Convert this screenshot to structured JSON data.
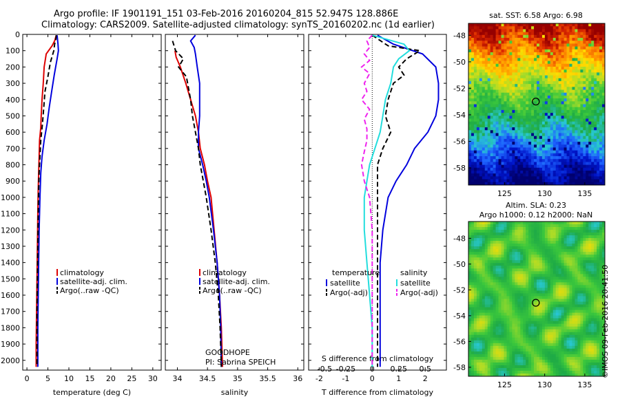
{
  "header": {
    "title_line1": "Argo profile: IF 1901191_151 03-Feb-2016 20160204_815 52.947S 128.886E",
    "title_line2": "Climatology: CARS2009. Satellite-adjusted climatology: synTS_20160202.nc (1d earlier)"
  },
  "colors": {
    "climatology": "#dd0000",
    "satellite": "#0000dd",
    "argo": "#000000",
    "sat_salinity": "#22dddd",
    "argo_salinity_diff": "#ee22ee"
  },
  "depth_axis": {
    "ticks": [
      0,
      100,
      200,
      300,
      400,
      500,
      600,
      700,
      800,
      900,
      1000,
      1100,
      1200,
      1300,
      1400,
      1500,
      1600,
      1700,
      1800,
      1900,
      2000
    ],
    "ylim": [
      0,
      2060
    ]
  },
  "chart_data": [
    {
      "type": "line",
      "name": "temperature",
      "xlabel": "temperature (deg C)",
      "xlim": [
        -1,
        32
      ],
      "xticks": [
        0,
        5,
        10,
        15,
        20,
        25,
        30
      ],
      "legend": [
        "climatology",
        "satellite-adj. clim.",
        "Argo(..raw -QC)"
      ],
      "series": [
        {
          "name": "climatology",
          "style": "solid",
          "color": "#dd0000",
          "points": [
            [
              7.0,
              5
            ],
            [
              6.6,
              40
            ],
            [
              6.0,
              70
            ],
            [
              4.6,
              120
            ],
            [
              4.1,
              200
            ],
            [
              3.9,
              300
            ],
            [
              3.6,
              400
            ],
            [
              3.4,
              500
            ],
            [
              3.3,
              570
            ],
            [
              3.0,
              650
            ],
            [
              2.9,
              750
            ],
            [
              2.8,
              850
            ],
            [
              2.7,
              950
            ],
            [
              2.6,
              1100
            ],
            [
              2.5,
              1300
            ],
            [
              2.4,
              1500
            ],
            [
              2.3,
              1700
            ],
            [
              2.2,
              1900
            ],
            [
              2.2,
              2040
            ]
          ]
        },
        {
          "name": "satellite-adj. clim.",
          "style": "solid",
          "color": "#0000dd",
          "points": [
            [
              7.2,
              5
            ],
            [
              7.4,
              60
            ],
            [
              7.5,
              100
            ],
            [
              7.2,
              150
            ],
            [
              6.5,
              250
            ],
            [
              5.9,
              350
            ],
            [
              5.3,
              450
            ],
            [
              4.8,
              550
            ],
            [
              4.1,
              650
            ],
            [
              3.6,
              750
            ],
            [
              3.3,
              850
            ],
            [
              3.1,
              1000
            ],
            [
              2.9,
              1200
            ],
            [
              2.8,
              1400
            ],
            [
              2.7,
              1600
            ],
            [
              2.6,
              1800
            ],
            [
              2.6,
              2040
            ]
          ]
        },
        {
          "name": "Argo(..raw -QC)",
          "style": "dashed",
          "color": "#000000",
          "points": [
            [
              7.0,
              5
            ],
            [
              6.9,
              30
            ],
            [
              6.6,
              60
            ],
            [
              6.4,
              100
            ],
            [
              5.6,
              170
            ],
            [
              5.0,
              260
            ],
            [
              4.3,
              350
            ],
            [
              4.0,
              450
            ],
            [
              3.7,
              550
            ],
            [
              3.3,
              650
            ],
            [
              3.1,
              750
            ],
            [
              2.9,
              850
            ],
            [
              2.8,
              950
            ],
            [
              2.7,
              1100
            ],
            [
              2.6,
              1300
            ],
            [
              2.5,
              1500
            ],
            [
              2.4,
              1700
            ],
            [
              2.4,
              1900
            ],
            [
              2.4,
              2040
            ]
          ]
        }
      ]
    },
    {
      "type": "line",
      "name": "salinity",
      "xlabel": "salinity",
      "xlim": [
        33.8,
        36.1
      ],
      "xticks": [
        34,
        34.5,
        35,
        35.5,
        36
      ],
      "legend": [
        "climatology",
        "satellite-adj. clim.",
        "Argo(..raw -QC)"
      ],
      "annotation": [
        "GOODHOPE",
        "PI: Sabrina SPEICH"
      ],
      "series": [
        {
          "name": "climatology",
          "style": "solid",
          "color": "#dd0000",
          "points": [
            [
              33.96,
              100
            ],
            [
              33.98,
              140
            ],
            [
              34.05,
              200
            ],
            [
              34.14,
              300
            ],
            [
              34.22,
              400
            ],
            [
              34.3,
              500
            ],
            [
              34.35,
              600
            ],
            [
              34.38,
              700
            ],
            [
              34.45,
              800
            ],
            [
              34.5,
              900
            ],
            [
              34.56,
              1000
            ],
            [
              34.61,
              1200
            ],
            [
              34.66,
              1400
            ],
            [
              34.7,
              1600
            ],
            [
              34.73,
              1800
            ],
            [
              34.75,
              2040
            ]
          ]
        },
        {
          "name": "satellite-adj. clim.",
          "style": "solid",
          "color": "#0000dd",
          "points": [
            [
              34.3,
              5
            ],
            [
              34.22,
              40
            ],
            [
              34.28,
              80
            ],
            [
              34.3,
              120
            ],
            [
              34.33,
              200
            ],
            [
              34.37,
              300
            ],
            [
              34.37,
              400
            ],
            [
              34.37,
              500
            ],
            [
              34.35,
              600
            ],
            [
              34.35,
              700
            ],
            [
              34.42,
              800
            ],
            [
              34.48,
              900
            ],
            [
              34.53,
              1000
            ],
            [
              34.6,
              1200
            ],
            [
              34.66,
              1400
            ],
            [
              34.7,
              1600
            ],
            [
              34.72,
              1800
            ],
            [
              34.73,
              2040
            ]
          ]
        },
        {
          "name": "Argo(..raw -QC)",
          "style": "dashed",
          "color": "#000000",
          "points": [
            [
              33.92,
              40
            ],
            [
              33.97,
              100
            ],
            [
              34.1,
              150
            ],
            [
              34.02,
              200
            ],
            [
              34.15,
              260
            ],
            [
              34.18,
              320
            ],
            [
              34.22,
              400
            ],
            [
              34.25,
              500
            ],
            [
              34.3,
              600
            ],
            [
              34.35,
              700
            ],
            [
              34.38,
              800
            ],
            [
              34.43,
              900
            ],
            [
              34.48,
              1000
            ],
            [
              34.56,
              1200
            ],
            [
              34.63,
              1400
            ],
            [
              34.68,
              1600
            ],
            [
              34.71,
              1800
            ],
            [
              34.73,
              2040
            ]
          ]
        }
      ]
    },
    {
      "type": "line",
      "name": "difference",
      "xlabel": "T difference from climatology",
      "xlim": [
        -2.4,
        2.8
      ],
      "xticks": [
        -2,
        -1,
        0,
        1,
        2
      ],
      "top_xlabel": "S difference from climatology",
      "top_xticks": [
        "-0.5",
        "-0.25",
        "0",
        "0.25",
        "0.5"
      ],
      "top_xtick_T": [
        -2,
        -1,
        0,
        1,
        2
      ],
      "legend": {
        "left_heading": "temperature",
        "right_heading": "salinity",
        "left": [
          "satellite",
          "Argo(-adj)"
        ],
        "right": [
          "satellite",
          "Argo(-adj)"
        ]
      },
      "series": [
        {
          "name": "satellite T",
          "style": "solid",
          "color": "#0000dd",
          "points": [
            [
              0.2,
              5
            ],
            [
              0.8,
              60
            ],
            [
              1.9,
              120
            ],
            [
              2.4,
              200
            ],
            [
              2.5,
              300
            ],
            [
              2.5,
              400
            ],
            [
              2.4,
              500
            ],
            [
              2.1,
              600
            ],
            [
              1.6,
              700
            ],
            [
              1.3,
              800
            ],
            [
              0.9,
              900
            ],
            [
              0.6,
              1000
            ],
            [
              0.4,
              1200
            ],
            [
              0.3,
              1400
            ],
            [
              0.3,
              1600
            ],
            [
              0.3,
              1800
            ],
            [
              0.3,
              2040
            ]
          ]
        },
        {
          "name": "Argo(-adj) T",
          "style": "dashed",
          "color": "#000000",
          "points": [
            [
              0,
              5
            ],
            [
              0.6,
              70
            ],
            [
              1.8,
              100
            ],
            [
              1.3,
              150
            ],
            [
              1.0,
              200
            ],
            [
              1.2,
              250
            ],
            [
              0.8,
              300
            ],
            [
              0.6,
              400
            ],
            [
              0.5,
              500
            ],
            [
              0.7,
              600
            ],
            [
              0.4,
              700
            ],
            [
              0.2,
              800
            ],
            [
              0.2,
              900
            ],
            [
              0.2,
              1000
            ],
            [
              0.2,
              1200
            ],
            [
              0.2,
              1400
            ],
            [
              0.2,
              1600
            ],
            [
              0.2,
              1800
            ],
            [
              0.2,
              2040
            ]
          ]
        },
        {
          "name": "satellite S",
          "style": "solid",
          "color": "#22dddd",
          "points": [
            [
              0.0,
              5
            ],
            [
              1.2,
              60
            ],
            [
              1.4,
              100
            ],
            [
              1.0,
              150
            ],
            [
              0.8,
              200
            ],
            [
              0.7,
              300
            ],
            [
              0.5,
              400
            ],
            [
              0.4,
              500
            ],
            [
              0.3,
              600
            ],
            [
              0.1,
              700
            ],
            [
              -0.1,
              800
            ],
            [
              -0.2,
              900
            ],
            [
              -0.3,
              1000
            ],
            [
              -0.3,
              1200
            ],
            [
              -0.2,
              1400
            ],
            [
              -0.1,
              1600
            ],
            [
              0,
              1800
            ],
            [
              0,
              2040
            ]
          ]
        },
        {
          "name": "Argo(-adj) S",
          "style": "dashed",
          "color": "#ee22ee",
          "points": [
            [
              0,
              5
            ],
            [
              -0.2,
              40
            ],
            [
              -0.1,
              80
            ],
            [
              -0.3,
              120
            ],
            [
              -0.1,
              160
            ],
            [
              -0.4,
              200
            ],
            [
              -0.1,
              240
            ],
            [
              -0.3,
              300
            ],
            [
              -0.2,
              350
            ],
            [
              -0.4,
              400
            ],
            [
              -0.1,
              460
            ],
            [
              -0.3,
              520
            ],
            [
              -0.2,
              580
            ],
            [
              -0.2,
              650
            ],
            [
              -0.3,
              720
            ],
            [
              -0.4,
              800
            ],
            [
              -0.3,
              900
            ],
            [
              -0.1,
              1000
            ],
            [
              0,
              1200
            ],
            [
              0,
              1600
            ],
            [
              0,
              2040
            ]
          ]
        }
      ]
    },
    {
      "type": "heatmap",
      "name": "sst_map",
      "title": "sat. SST: 6.58  Argo: 6.98",
      "xticks": [
        "125",
        "130",
        "135"
      ],
      "yticks": [
        "-48",
        "-50",
        "-52",
        "-54",
        "-56",
        "-58"
      ],
      "xlim": [
        120.5,
        137.5
      ],
      "ylim": [
        -59.3,
        -47.1
      ],
      "marker": [
        128.9,
        -53.0
      ]
    },
    {
      "type": "heatmap",
      "name": "sla_map",
      "title_line1": "Altim. SLA: 0.23",
      "title_line2": "Argo h1000: 0.12 h2000: NaN",
      "xticks": [
        "125",
        "130",
        "135"
      ],
      "yticks": [
        "-48",
        "-50",
        "-52",
        "-54",
        "-56",
        "-58"
      ],
      "xlim": [
        120.5,
        137.5
      ],
      "ylim": [
        -58.7,
        -46.7
      ],
      "marker": [
        128.9,
        -53.0
      ]
    }
  ],
  "credit": "©IMOS 09-Feb-2016 20:41:50"
}
